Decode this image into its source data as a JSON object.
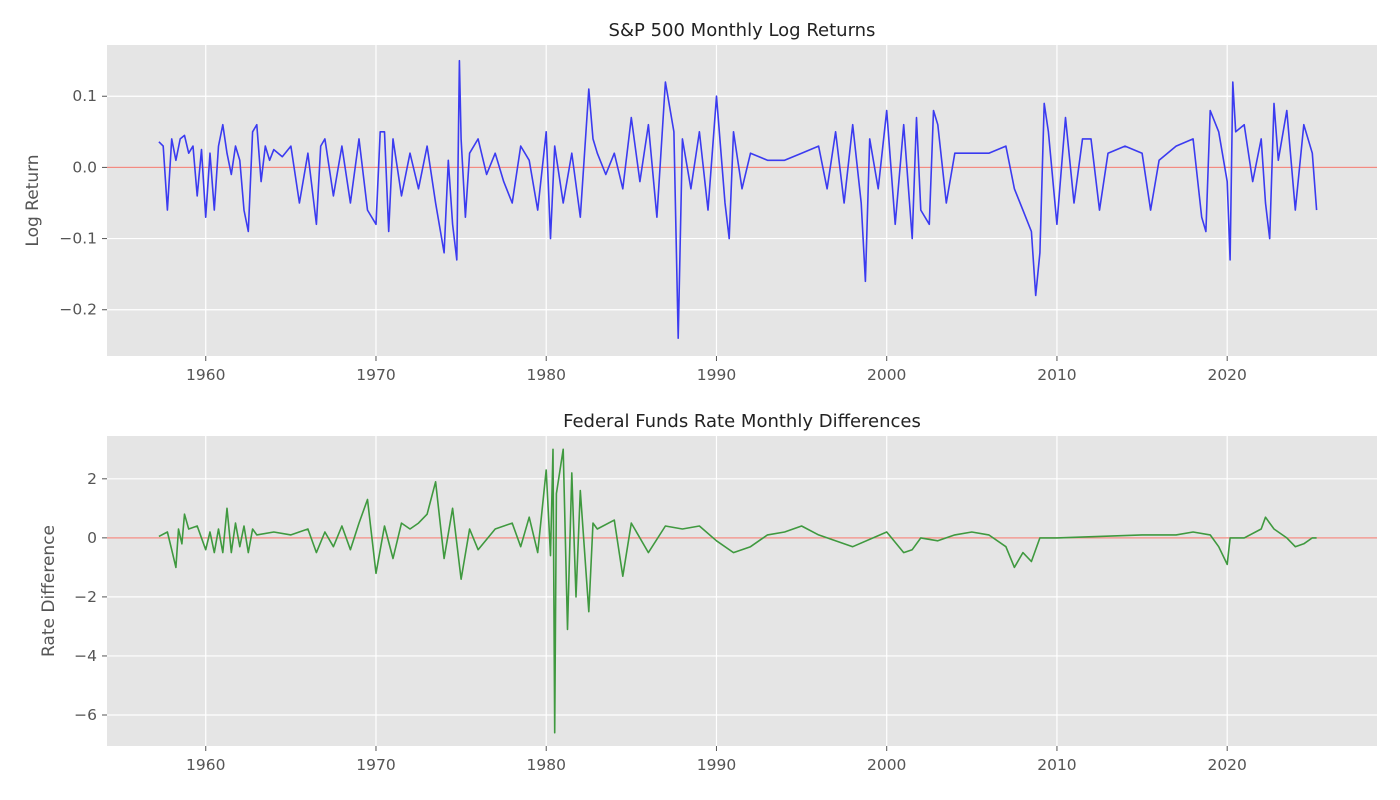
{
  "chart_data": [
    {
      "type": "line",
      "title": "S&P 500 Monthly Log Returns",
      "xlabel": "",
      "ylabel": "Log Return",
      "xlim": [
        1954.2,
        2028.8
      ],
      "ylim": [
        -0.265,
        0.172
      ],
      "x_ticks": [
        1960,
        1970,
        1980,
        1990,
        2000,
        2010,
        2020
      ],
      "x_tick_labels": [
        "1960",
        "1970",
        "1980",
        "1990",
        "2000",
        "2010",
        "2020"
      ],
      "y_ticks": [
        0.1,
        0.0,
        -0.1,
        -0.2
      ],
      "y_tick_labels": [
        "0.1",
        "0.0",
        "−0.1",
        "−0.2"
      ],
      "grid": true,
      "reference_line": {
        "y": 0,
        "color": "#f28b82"
      },
      "series": [
        {
          "color": "#3b3bf0",
          "x": [
            1957.25,
            1957.5,
            1957.75,
            1958.0,
            1958.25,
            1958.5,
            1958.75,
            1959.0,
            1959.25,
            1959.5,
            1959.75,
            1960.0,
            1960.25,
            1960.5,
            1960.75,
            1961.0,
            1961.25,
            1961.5,
            1961.75,
            1962.0,
            1962.25,
            1962.5,
            1962.75,
            1963.0,
            1963.25,
            1963.5,
            1963.75,
            1964.0,
            1964.5,
            1965.0,
            1965.5,
            1966.0,
            1966.5,
            1966.75,
            1967.0,
            1967.5,
            1968.0,
            1968.5,
            1969.0,
            1969.5,
            1970.0,
            1970.25,
            1970.5,
            1970.75,
            1971.0,
            1971.5,
            1972.0,
            1972.5,
            1973.0,
            1973.5,
            1974.0,
            1974.25,
            1974.5,
            1974.75,
            1974.9,
            1975.0,
            1975.25,
            1975.5,
            1976.0,
            1976.5,
            1977.0,
            1977.5,
            1978.0,
            1978.5,
            1979.0,
            1979.5,
            1980.0,
            1980.25,
            1980.5,
            1981.0,
            1981.5,
            1982.0,
            1982.5,
            1982.75,
            1983.0,
            1983.5,
            1984.0,
            1984.5,
            1985.0,
            1985.5,
            1986.0,
            1986.5,
            1987.0,
            1987.5,
            1987.75,
            1988.0,
            1988.5,
            1989.0,
            1989.5,
            1990.0,
            1990.5,
            1990.75,
            1991.0,
            1991.5,
            1992.0,
            1993.0,
            1994.0,
            1995.0,
            1996.0,
            1996.5,
            1997.0,
            1997.5,
            1998.0,
            1998.5,
            1998.75,
            1999.0,
            1999.5,
            2000.0,
            2000.5,
            2001.0,
            2001.5,
            2001.75,
            2002.0,
            2002.5,
            2002.75,
            2003.0,
            2003.5,
            2004.0,
            2005.0,
            2006.0,
            2007.0,
            2007.5,
            2008.0,
            2008.5,
            2008.75,
            2009.0,
            2009.25,
            2009.5,
            2010.0,
            2010.5,
            2011.0,
            2011.5,
            2012.0,
            2012.5,
            2013.0,
            2014.0,
            2015.0,
            2015.5,
            2016.0,
            2017.0,
            2018.0,
            2018.5,
            2018.75,
            2019.0,
            2019.5,
            2020.0,
            2020.17,
            2020.33,
            2020.5,
            2021.0,
            2021.5,
            2022.0,
            2022.25,
            2022.5,
            2022.75,
            2023.0,
            2023.5,
            2024.0,
            2024.5,
            2025.0,
            2025.25
          ],
          "y": [
            0.036,
            0.03,
            -0.06,
            0.04,
            0.01,
            0.04,
            0.045,
            0.02,
            0.03,
            -0.04,
            0.025,
            -0.07,
            0.02,
            -0.06,
            0.03,
            0.06,
            0.02,
            -0.01,
            0.03,
            0.01,
            -0.06,
            -0.09,
            0.05,
            0.06,
            -0.02,
            0.03,
            0.01,
            0.025,
            0.015,
            0.03,
            -0.05,
            0.02,
            -0.08,
            0.03,
            0.04,
            -0.04,
            0.03,
            -0.05,
            0.04,
            -0.06,
            -0.08,
            0.05,
            0.05,
            -0.09,
            0.04,
            -0.04,
            0.02,
            -0.03,
            0.03,
            -0.05,
            -0.12,
            0.01,
            -0.08,
            -0.13,
            0.15,
            0.04,
            -0.07,
            0.02,
            0.04,
            -0.01,
            0.02,
            -0.02,
            -0.05,
            0.03,
            0.01,
            -0.06,
            0.05,
            -0.1,
            0.03,
            -0.05,
            0.02,
            -0.07,
            0.11,
            0.04,
            0.02,
            -0.01,
            0.02,
            -0.03,
            0.07,
            -0.02,
            0.06,
            -0.07,
            0.12,
            0.05,
            -0.24,
            0.04,
            -0.03,
            0.05,
            -0.06,
            0.1,
            -0.05,
            -0.1,
            0.05,
            -0.03,
            0.02,
            0.01,
            0.01,
            0.02,
            0.03,
            -0.03,
            0.05,
            -0.05,
            0.06,
            -0.05,
            -0.16,
            0.04,
            -0.03,
            0.08,
            -0.08,
            0.06,
            -0.1,
            0.07,
            -0.06,
            -0.08,
            0.08,
            0.06,
            -0.05,
            0.02,
            0.02,
            0.02,
            0.03,
            -0.03,
            -0.06,
            -0.09,
            -0.18,
            -0.12,
            0.09,
            0.05,
            -0.08,
            0.07,
            -0.05,
            0.04,
            0.04,
            -0.06,
            0.02,
            0.03,
            0.02,
            -0.06,
            0.01,
            0.03,
            0.04,
            -0.07,
            -0.09,
            0.08,
            0.05,
            -0.02,
            -0.13,
            0.12,
            0.05,
            0.06,
            -0.02,
            0.04,
            -0.05,
            -0.1,
            0.09,
            0.01,
            0.08,
            -0.06,
            0.06,
            0.02,
            -0.06
          ]
        }
      ]
    },
    {
      "type": "line",
      "title": "Federal Funds Rate Monthly Differences",
      "xlabel": "",
      "ylabel": "Rate Difference",
      "xlim": [
        1954.2,
        2028.8
      ],
      "ylim": [
        -7.05,
        3.45
      ],
      "x_ticks": [
        1960,
        1970,
        1980,
        1990,
        2000,
        2010,
        2020
      ],
      "x_tick_labels": [
        "1960",
        "1970",
        "1980",
        "1990",
        "2000",
        "2010",
        "2020"
      ],
      "y_ticks": [
        2,
        0,
        -2,
        -4,
        -6
      ],
      "y_tick_labels": [
        "2",
        "0",
        "−2",
        "−4",
        "−6"
      ],
      "grid": true,
      "reference_line": {
        "y": 0,
        "color": "#f28b82"
      },
      "series": [
        {
          "color": "#3f993f",
          "x": [
            1957.25,
            1957.75,
            1958.0,
            1958.25,
            1958.4,
            1958.6,
            1958.75,
            1959.0,
            1959.5,
            1960.0,
            1960.25,
            1960.5,
            1960.75,
            1961.0,
            1961.25,
            1961.5,
            1961.75,
            1962.0,
            1962.25,
            1962.5,
            1962.75,
            1963.0,
            1964.0,
            1965.0,
            1966.0,
            1966.5,
            1967.0,
            1967.5,
            1968.0,
            1968.5,
            1969.0,
            1969.5,
            1970.0,
            1970.5,
            1971.0,
            1971.5,
            1972.0,
            1972.5,
            1973.0,
            1973.5,
            1974.0,
            1974.5,
            1975.0,
            1975.5,
            1976.0,
            1977.0,
            1978.0,
            1978.5,
            1979.0,
            1979.5,
            1980.0,
            1980.25,
            1980.4,
            1980.5,
            1980.6,
            1981.0,
            1981.25,
            1981.5,
            1981.75,
            1982.0,
            1982.5,
            1982.75,
            1983.0,
            1984.0,
            1984.5,
            1985.0,
            1986.0,
            1987.0,
            1988.0,
            1989.0,
            1990.0,
            1991.0,
            1992.0,
            1993.0,
            1994.0,
            1995.0,
            1996.0,
            1998.0,
            2000.0,
            2001.0,
            2001.5,
            2002.0,
            2003.0,
            2004.0,
            2005.0,
            2006.0,
            2007.0,
            2007.5,
            2008.0,
            2008.5,
            2009.0,
            2010.0,
            2015.0,
            2016.0,
            2017.0,
            2018.0,
            2019.0,
            2019.5,
            2020.0,
            2020.17,
            2020.5,
            2021.0,
            2022.0,
            2022.25,
            2022.5,
            2022.75,
            2023.0,
            2023.5,
            2024.0,
            2024.5,
            2025.0,
            2025.25
          ],
          "y": [
            0.05,
            0.2,
            -0.4,
            -1.0,
            0.3,
            -0.2,
            0.8,
            0.3,
            0.4,
            -0.4,
            0.2,
            -0.5,
            0.3,
            -0.5,
            1.0,
            -0.5,
            0.5,
            -0.3,
            0.4,
            -0.5,
            0.3,
            0.1,
            0.2,
            0.1,
            0.3,
            -0.5,
            0.2,
            -0.3,
            0.4,
            -0.4,
            0.5,
            1.3,
            -1.2,
            0.4,
            -0.7,
            0.5,
            0.3,
            0.5,
            0.8,
            1.9,
            -0.7,
            1.0,
            -1.4,
            0.3,
            -0.4,
            0.3,
            0.5,
            -0.3,
            0.7,
            -0.5,
            2.3,
            -0.6,
            3.0,
            -6.6,
            1.5,
            3.0,
            -3.1,
            2.2,
            -2.0,
            1.6,
            -2.5,
            0.5,
            0.3,
            0.6,
            -1.3,
            0.5,
            -0.5,
            0.4,
            0.3,
            0.4,
            -0.1,
            -0.5,
            -0.3,
            0.1,
            0.2,
            0.4,
            0.1,
            -0.3,
            0.2,
            -0.5,
            -0.4,
            0.0,
            -0.1,
            0.1,
            0.2,
            0.1,
            -0.3,
            -1.0,
            -0.5,
            -0.8,
            0.0,
            0.0,
            0.1,
            0.1,
            0.1,
            0.2,
            0.1,
            -0.3,
            -0.9,
            0.0,
            0.0,
            0.0,
            0.3,
            0.7,
            0.5,
            0.3,
            0.2,
            0.0,
            -0.3,
            -0.2,
            0.0,
            0.0
          ]
        }
      ]
    }
  ]
}
